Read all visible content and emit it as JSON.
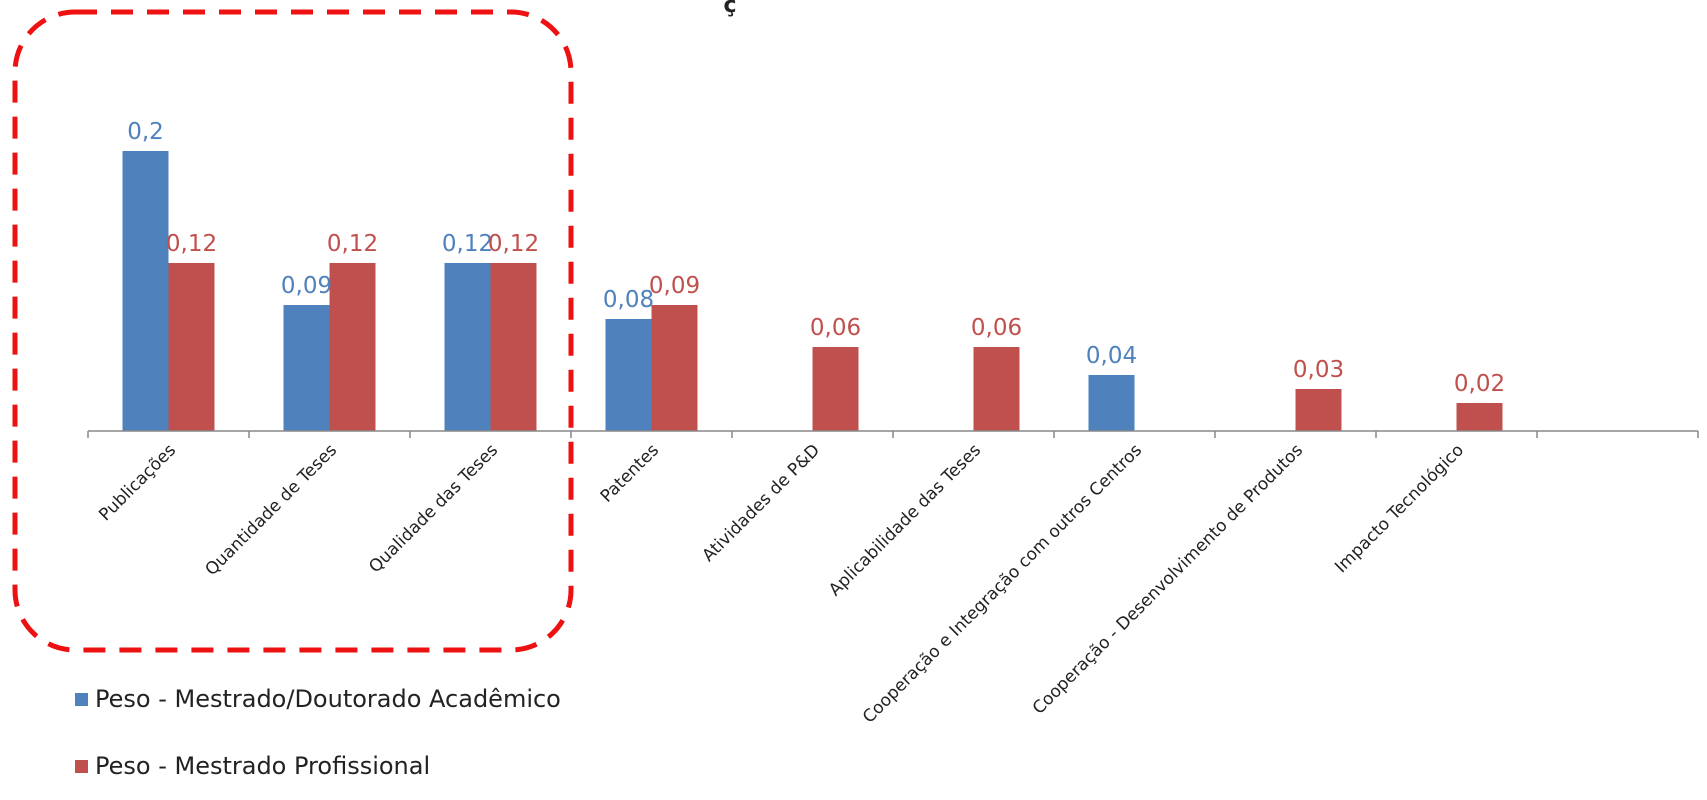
{
  "colors": {
    "academic": "#4F81BD",
    "professional": "#C0504D",
    "highlight": "#EE1111",
    "axis": "#888888"
  },
  "chart_data": {
    "type": "bar",
    "title": "ç",
    "categories": [
      "Publicações",
      "Quantidade de Teses",
      "Qualidade das Teses",
      "Patentes",
      "Atividades de P&D",
      "Aplicabilidade das Teses",
      "Cooperação e Integração com outros Centros",
      "Cooperação - Desenvolvimento de Produtos",
      "Impacto Tecnológico",
      ""
    ],
    "series": [
      {
        "name": "Peso - Mestrado/Doutorado Acadêmico",
        "labels": [
          "0,2",
          "0,09",
          "0,12",
          "0,08",
          "",
          "",
          "0,04",
          "",
          "",
          ""
        ],
        "values": [
          0.2,
          0.09,
          0.12,
          0.08,
          null,
          null,
          0.04,
          null,
          null,
          null
        ]
      },
      {
        "name": "Peso - Mestrado Profissional",
        "labels": [
          "0,12",
          "0,12",
          "0,12",
          "0,09",
          "0,06",
          "0,06",
          "",
          "0,03",
          "0,02",
          ""
        ],
        "values": [
          0.12,
          0.12,
          0.12,
          0.09,
          0.06,
          0.06,
          null,
          0.03,
          0.02,
          null
        ]
      }
    ],
    "ylim": [
      0,
      0.2
    ],
    "grid": false,
    "legend": "bottom-left",
    "annotations": [
      "dashed rounded red highlight box around the first three categories"
    ]
  }
}
